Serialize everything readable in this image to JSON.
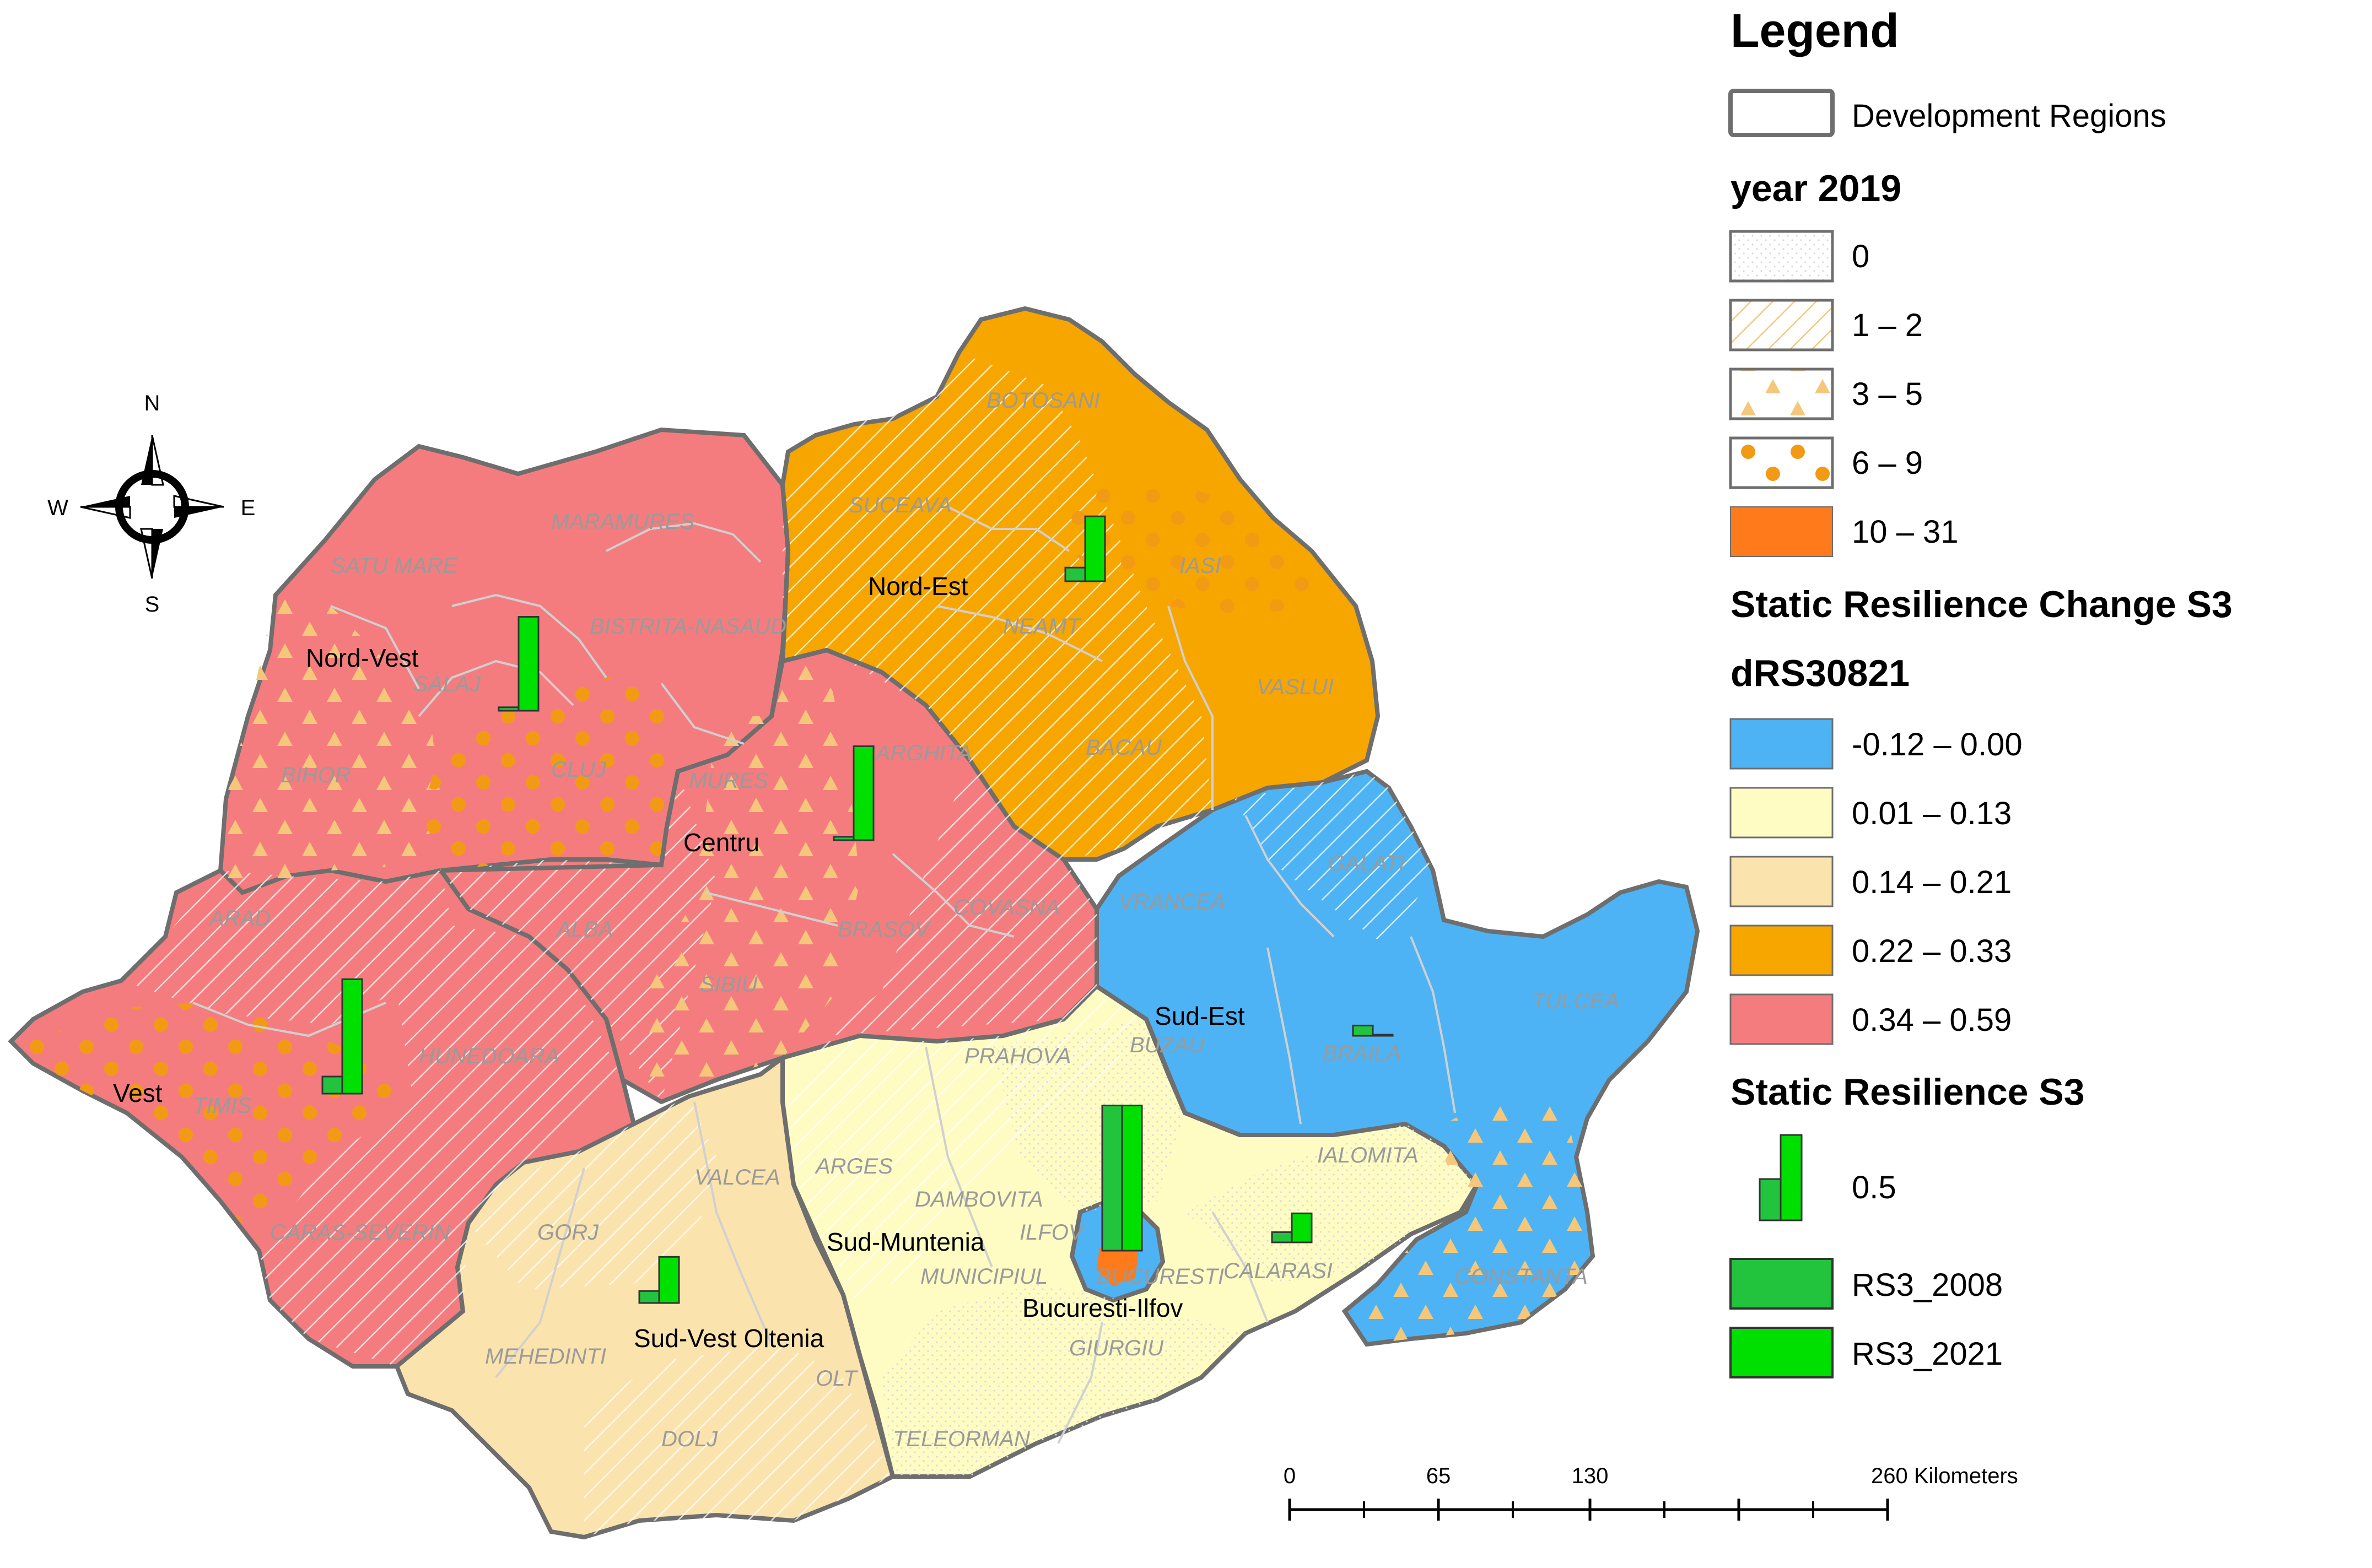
{
  "legend": {
    "title": "Legend",
    "boundary_label": "Development Regions",
    "year_heading": "year 2019",
    "year_classes": [
      {
        "label": "0",
        "pattern": "fine-dots"
      },
      {
        "label": "1 – 2",
        "pattern": "diagonal-hatch"
      },
      {
        "label": "3  –  5",
        "pattern": "triangles"
      },
      {
        "label": "6  –  9",
        "pattern": "orange-dots"
      },
      {
        "label": "10  –  31",
        "pattern": "solid-orange"
      }
    ],
    "change_heading": "Static Resilience Change S3",
    "field_heading": "dRS30821",
    "change_classes": [
      {
        "label": "-0.12  –  0.00",
        "color": "#4db3f5"
      },
      {
        "label": "0.01  –  0.13",
        "color": "#fefcc3"
      },
      {
        "label": "0.14  –  0.21",
        "color": "#fbe3ad"
      },
      {
        "label": "0.22  – 0.33",
        "color": "#f7a600"
      },
      {
        "label": "0.34  –  0.59",
        "color": "#f57c7e"
      }
    ],
    "resilience_heading": "Static Resilience S3",
    "bar_scale_label": "0.5",
    "bar_series": [
      {
        "label": "RS3_2008",
        "color": "#22c43e"
      },
      {
        "label": "RS3_2021",
        "color": "#00e000"
      }
    ]
  },
  "compass": {
    "n": "N",
    "s": "S",
    "e": "E",
    "w": "W"
  },
  "scale_bar": {
    "ticks": [
      "0",
      "65",
      "130",
      "260 Kilometers"
    ]
  },
  "regions": [
    {
      "name": "Nord-Vest",
      "color": "#f57c7e",
      "rs3_2008": 0.02,
      "rs3_2021": 0.55
    },
    {
      "name": "Nord-Est",
      "color": "#f7a600",
      "rs3_2008": 0.08,
      "rs3_2021": 0.38
    },
    {
      "name": "Centru",
      "color": "#f57c7e",
      "rs3_2008": 0.02,
      "rs3_2021": 0.55
    },
    {
      "name": "Vest",
      "color": "#f57c7e",
      "rs3_2008": 0.1,
      "rs3_2021": 0.67
    },
    {
      "name": "Sud-Est",
      "color": "#4db3f5",
      "rs3_2008": 0.06,
      "rs3_2021": 0.0
    },
    {
      "name": "Sud-Muntenia",
      "color": "#fefcc3",
      "rs3_2008": 0.0,
      "rs3_2021": 0.0
    },
    {
      "name": "Bucuresti-Ilfov",
      "color": "#4db3f5",
      "rs3_2008": 0.85,
      "rs3_2021": 0.85
    },
    {
      "name": "Sud-Vest Oltenia",
      "color": "#fbe3ad",
      "rs3_2008": 0.07,
      "rs3_2021": 0.27
    }
  ],
  "ialomita_calarasi_bars": {
    "rs3_2008": 0.06,
    "rs3_2021": 0.17
  },
  "counties": [
    "MARAMURES",
    "SATU MARE",
    "BISTRITA-NASAUD",
    "SALAJ",
    "BIHOR",
    "CLUJ",
    "MURES",
    "HARGHITA",
    "SUCEAVA",
    "BOTOSANI",
    "IASI",
    "NEAMT",
    "VASLUI",
    "BACAU",
    "COVASNA",
    "ALBA",
    "ARAD",
    "SIBIU",
    "BRASOV",
    "VRANCEA",
    "GALATI",
    "TULCEA",
    "BUZAU",
    "BRAILA",
    "HUNEDOARA",
    "TIMIS",
    "PRAHOVA",
    "CARAS-SEVERIN",
    "GORJ",
    "VALCEA",
    "ARGES",
    "DAMBOVITA",
    "ILFOV",
    "IALOMITA",
    "CALARASI",
    "CONSTANTA",
    "MEHEDINTI",
    "OLT",
    "DOLJ",
    "TELEORMAN",
    "GIURGIU",
    "MUNICIPIUL",
    "BUCURESTI"
  ]
}
